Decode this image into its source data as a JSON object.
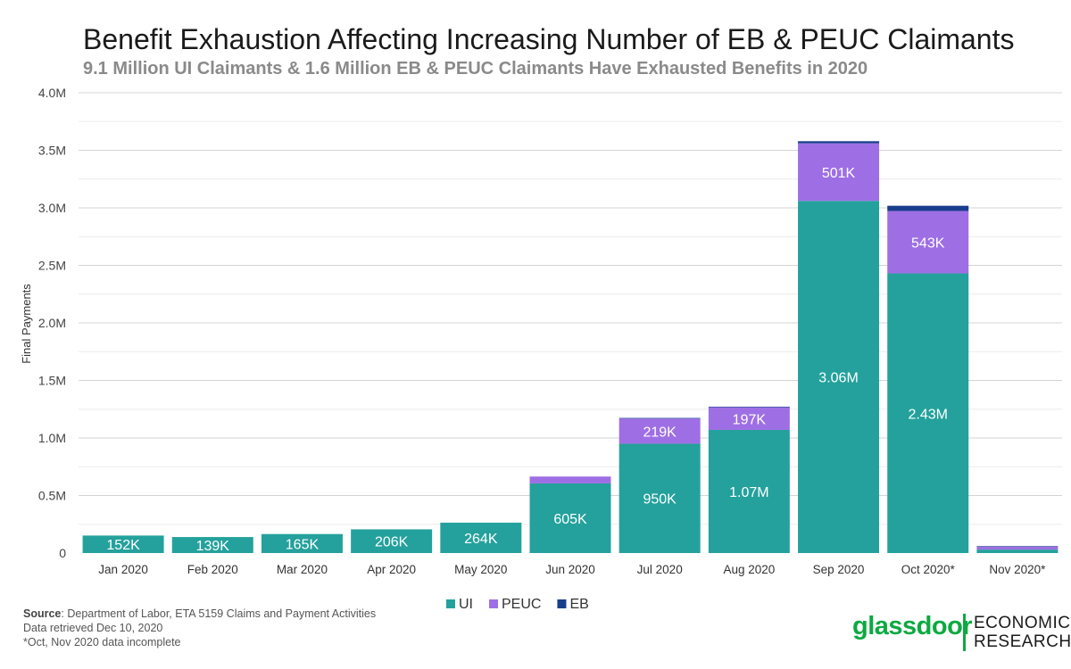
{
  "chart_data": {
    "type": "bar",
    "stacked": true,
    "title": "Benefit Exhaustion Affecting Increasing Number of EB & PEUC Claimants",
    "subtitle": "9.1 Million UI Claimants & 1.6 Million EB & PEUC Claimants Have Exhausted Benefits in 2020",
    "ylabel": "Final Payments",
    "xlabel": "",
    "ylim": [
      0,
      4000000
    ],
    "yticks": [
      0,
      500000,
      1000000,
      1500000,
      2000000,
      2500000,
      3000000,
      3500000,
      4000000
    ],
    "ytick_labels": [
      "0",
      "0.5M",
      "1.0M",
      "1.5M",
      "2.0M",
      "2.5M",
      "3.0M",
      "3.5M",
      "4.0M"
    ],
    "grid": true,
    "legend_position": "bottom-center",
    "categories": [
      "Jan 2020",
      "Feb 2020",
      "Mar 2020",
      "Apr 2020",
      "May 2020",
      "Jun 2020",
      "Jul 2020",
      "Aug 2020",
      "Sep 2020",
      "Oct 2020*",
      "Nov 2020*"
    ],
    "series": [
      {
        "name": "UI",
        "color": "#24a19c",
        "values": [
          152000,
          139000,
          165000,
          206000,
          264000,
          605000,
          950000,
          1070000,
          3060000,
          2430000,
          30000
        ],
        "labels": [
          "152K",
          "139K",
          "165K",
          "206K",
          "264K",
          "605K",
          "950K",
          "1.07M",
          "3.06M",
          "2.43M",
          ""
        ]
      },
      {
        "name": "PEUC",
        "color": "#9e6fe4",
        "values": [
          0,
          0,
          0,
          0,
          0,
          60000,
          219000,
          197000,
          501000,
          543000,
          25000
        ],
        "labels": [
          "",
          "",
          "",
          "",
          "",
          "",
          "219K",
          "197K",
          "501K",
          "543K",
          ""
        ]
      },
      {
        "name": "EB",
        "color": "#183e8c",
        "values": [
          0,
          0,
          0,
          0,
          0,
          0,
          5000,
          5000,
          18000,
          45000,
          5000
        ],
        "labels": [
          "",
          "",
          "",
          "",
          "",
          "",
          "",
          "",
          "",
          "",
          ""
        ]
      }
    ]
  },
  "footnote": {
    "source_label": "Source",
    "source_text": ": Department of Labor, ETA 5159 Claims and Payment Activities",
    "retrieved": "Data retrieved Dec 10, 2020",
    "note": "*Oct, Nov 2020 data incomplete"
  },
  "logo": {
    "brand": "glassdoor",
    "unit_line1": "ECONOMIC",
    "unit_line2": "RESEARCH"
  }
}
